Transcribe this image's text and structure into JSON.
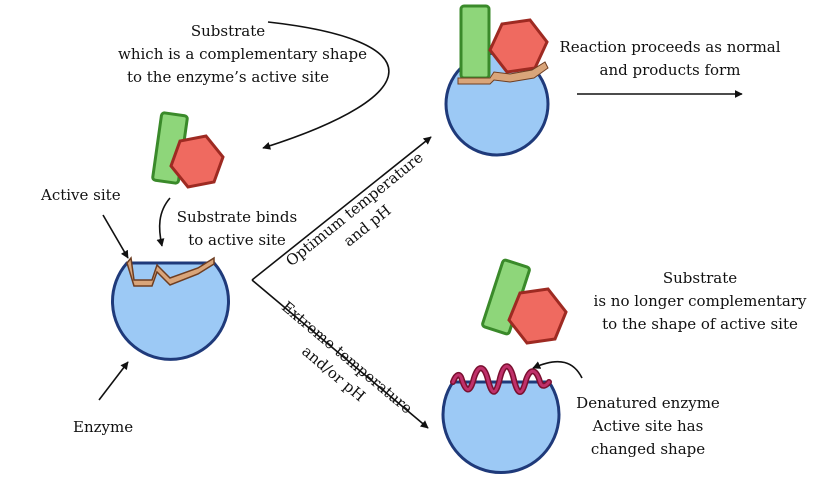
{
  "colors": {
    "enzyme_fill": "#9cc9f5",
    "enzyme_stroke": "#1f3a7a",
    "active_site_fill": "#d9a57a",
    "denatured_fill": "#c0306a",
    "rect_fill": "#8ed67a",
    "rect_stroke": "#3a8a2a",
    "hex_fill": "#ef6a60",
    "hex_stroke": "#9e2a22",
    "arrow": "#111111"
  },
  "labels": {
    "substrate_top": [
      "Substrate",
      "which is a complementary shape",
      "to the enzyme’s active site"
    ],
    "active_site": "Active site",
    "substrate_binds": [
      "Substrate binds",
      "to active site"
    ],
    "enzyme": "Enzyme",
    "optimum": [
      "Optimum temperature",
      "and pH"
    ],
    "extreme": [
      "Extreme temperature",
      "and/or pH"
    ],
    "reaction": [
      "Reaction proceeds as normal",
      "and products form"
    ],
    "substrate_no_longer": [
      "Substrate",
      "is no longer complementary",
      "to the shape of active site"
    ],
    "denatured": [
      "Denatured enzyme",
      "Active site has",
      "changed shape"
    ]
  }
}
